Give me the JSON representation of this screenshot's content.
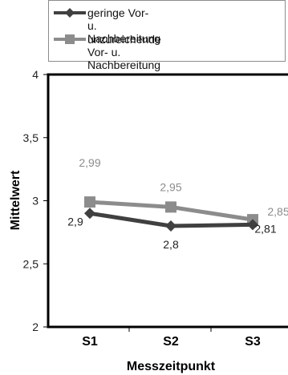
{
  "chart_data": {
    "type": "line",
    "categories": [
      "S1",
      "S2",
      "S3"
    ],
    "series": [
      {
        "name": "geringe Vor- u. Nachbereitung",
        "values": [
          2.9,
          2.8,
          2.81
        ],
        "value_labels": [
          "2,9",
          "2,8",
          "2,81"
        ],
        "color": "#404040",
        "marker": "diamond"
      },
      {
        "name": "unzureichende Vor- u.\nNachbereitung",
        "values": [
          2.99,
          2.95,
          2.85
        ],
        "value_labels": [
          "2,99",
          "2,95",
          "2,85"
        ],
        "color": "#8c8c8c",
        "marker": "square"
      }
    ],
    "title": "",
    "xlabel": "Messzeitpunkt",
    "ylabel": "Mittelwert",
    "ylim": [
      2,
      4
    ],
    "yticks": [
      2,
      2.5,
      3,
      3.5,
      4
    ],
    "ytick_labels": [
      "2",
      "2,5",
      "3",
      "3,5",
      "4"
    ],
    "grid": false,
    "legend_position": "top"
  }
}
